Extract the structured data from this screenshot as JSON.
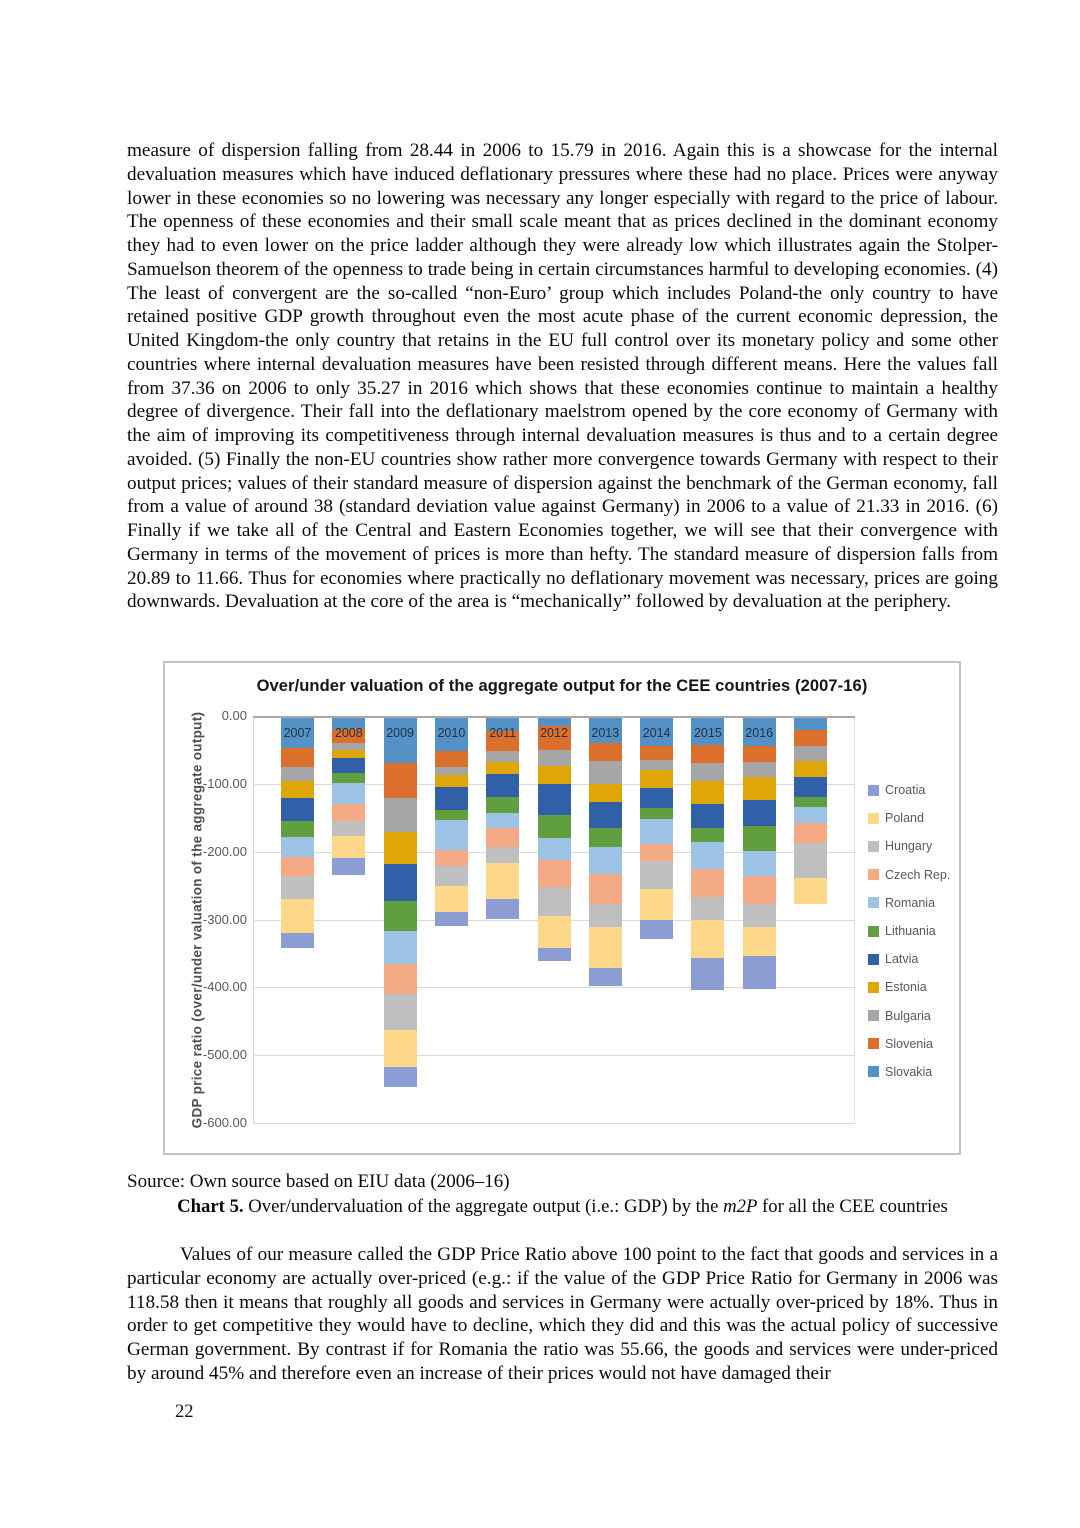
{
  "page": {
    "paragraph1": "measure of dispersion falling from 28.44 in 2006 to 15.79 in 2016. Again this is a showcase for the internal devaluation measures which have induced deflationary pressures where these had no place. Prices were anyway lower in these economies so no lowering was necessary any longer especially with regard to the price of labour. The openness of these economies and their small scale meant that as prices declined in the dominant economy they had to even lower on the price ladder although they were already low which illustrates again the Stolper-Samuelson theorem of the openness to trade being in certain circumstances harmful to developing economies. (4) The least of convergent are the so-called “non-Euro’ group which includes Poland-the only country to have retained positive GDP growth throughout even the most acute phase of the current economic depression, the United Kingdom-the only country that retains in the EU full control over its monetary policy and some other countries where internal devaluation measures have been resisted through different means. Here the values fall from 37.36 on 2006 to only 35.27 in 2016 which shows that these economies continue to maintain a healthy degree of divergence. Their fall into the deflationary maelstrom opened by the core economy of Germany with the aim of improving its competitiveness through internal devaluation measures is thus and to a certain degree avoided. (5) Finally the non-EU countries show rather more convergence towards Germany with respect to their output prices; values of their standard measure of dispersion against the benchmark of the German economy, fall from a value of around 38 (standard deviation value against Germany) in 2006 to a value of 21.33 in 2016. (6) Finally if we take all of the Central and Eastern Economies together, we will see that their convergence with Germany in terms of the movement of prices is more than hefty. The standard measure of dispersion falls from 20.89 to 11.66. Thus for economies where practically no deflationary movement was necessary, prices are going downwards. Devaluation at the core of the area is “mechanically” followed by devaluation at the periphery.",
    "paragraph2": "Values of our measure called the GDP Price Ratio above 100 point to the fact that goods and services in a particular economy are actually over-priced (e.g.: if the value of the GDP Price Ratio for Germany in 2006 was 118.58 then it means that roughly all goods and services in Germany were actually over-priced by 18%. Thus in order to get competitive they would have to decline, which they did and this was the actual policy of successive German government. By contrast if for Romania the ratio was 55.66, the goods and services were under-priced by around 45% and therefore even an increase of their prices would not have damaged their",
    "source_line": "Source: Own source based on EIU data (2006–16)",
    "caption": {
      "label": "Chart 5.",
      "text_before_italic": " Over/undervaluation of the aggregate output (i.e.: GDP) by the ",
      "italic": "m2P",
      "text_after_italic": " for all the CEE countries"
    },
    "page_number": "22"
  },
  "chart_data": {
    "type": "bar",
    "stacked": true,
    "title": "Over/under valuation of the aggregate output for the CEE countries (2007-16)",
    "ylabel": "GDP price ratio (over/under valuation of the aggregate output)",
    "xlabel": "",
    "categories": [
      "2007",
      "2008",
      "2009",
      "2010",
      "2011",
      "2012",
      "2013",
      "2014",
      "2015",
      "2016",
      ""
    ],
    "ylim": [
      -600,
      0
    ],
    "ytick_labels": [
      "0.00",
      "-100.00",
      "-200.00",
      "-300.00",
      "-400.00",
      "-500.00",
      "-600.00"
    ],
    "grid": true,
    "legend_position": "right",
    "stack_order_note": "plotted top-down from zero line in reverse legend order (Slovakia nearest zero, Croatia at bottom)",
    "series": [
      {
        "name": "Croatia",
        "color": "#8b9dd3",
        "values": [
          -22,
          -25,
          -29,
          -20,
          -29,
          -20,
          -27,
          -27,
          -46,
          -49,
          0
        ]
      },
      {
        "name": "Poland",
        "color": "#fdd88a",
        "values": [
          -49,
          -32,
          -54,
          -39,
          -54,
          -46,
          -61,
          -46,
          -56,
          -42,
          -39
        ]
      },
      {
        "name": "Hungary",
        "color": "#bfbfbf",
        "values": [
          -34,
          -22,
          -54,
          -29,
          -24,
          -44,
          -34,
          -42,
          -34,
          -34,
          -51
        ]
      },
      {
        "name": "Czech Rep.",
        "color": "#f3aa85",
        "values": [
          -29,
          -25,
          -44,
          -24,
          -27,
          -39,
          -44,
          -24,
          -42,
          -42,
          -29
        ]
      },
      {
        "name": "Romania",
        "color": "#9dc3e6",
        "values": [
          -29,
          -32,
          -49,
          -44,
          -22,
          -32,
          -39,
          -37,
          -39,
          -37,
          -24
        ]
      },
      {
        "name": "Lithuania",
        "color": "#619e3f",
        "values": [
          -24,
          -15,
          -44,
          -15,
          -24,
          -34,
          -29,
          -17,
          -22,
          -37,
          -15
        ]
      },
      {
        "name": "Latvia",
        "color": "#3060a8",
        "values": [
          -34,
          -22,
          -54,
          -34,
          -34,
          -46,
          -37,
          -29,
          -34,
          -37,
          -29
        ]
      },
      {
        "name": "Estonia",
        "color": "#dfa607",
        "values": [
          -25,
          -12,
          -47,
          -17,
          -17,
          -27,
          -27,
          -27,
          -34,
          -34,
          -24
        ]
      },
      {
        "name": "Bulgaria",
        "color": "#a6a6a6",
        "values": [
          -20,
          -10,
          -51,
          -12,
          -17,
          -24,
          -34,
          -15,
          -27,
          -22,
          -22
        ]
      },
      {
        "name": "Slovenia",
        "color": "#dd6f2d",
        "values": [
          -29,
          -20,
          -51,
          -24,
          -29,
          -34,
          -27,
          -20,
          -27,
          -24,
          -24
        ]
      },
      {
        "name": "Slovakia",
        "color": "#5391c6",
        "values": [
          -45,
          -18,
          -68,
          -50,
          -21,
          -14,
          -38,
          -43,
          -41,
          -43,
          -19
        ]
      }
    ]
  }
}
